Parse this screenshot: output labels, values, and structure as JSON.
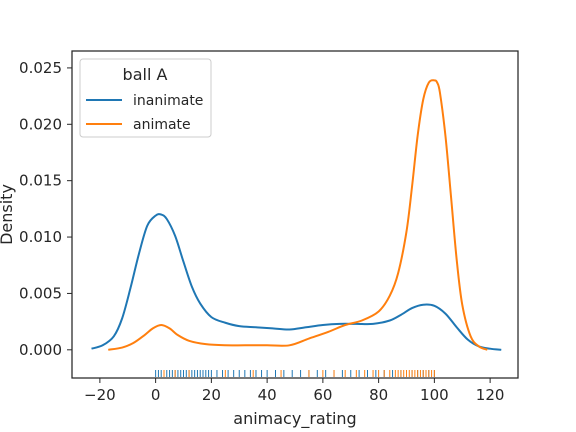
{
  "chart_data": {
    "type": "line",
    "subtype": "kde-with-rug",
    "xlabel": "animacy_rating",
    "ylabel": "Density",
    "xlim": [
      -30,
      130
    ],
    "ylim": [
      -0.0025,
      0.0265
    ],
    "x_ticks": [
      -20,
      0,
      20,
      40,
      60,
      80,
      100,
      120
    ],
    "x_tick_labels": [
      "−20",
      "0",
      "20",
      "40",
      "60",
      "80",
      "100",
      "120"
    ],
    "y_ticks": [
      0.0,
      0.005,
      0.01,
      0.015,
      0.02,
      0.025
    ],
    "y_tick_labels": [
      "0.000",
      "0.005",
      "0.010",
      "0.015",
      "0.020",
      "0.025"
    ],
    "grid": false,
    "legend": {
      "title": "ball A",
      "placement": "top-left",
      "entries": [
        "inanimate",
        "animate"
      ]
    },
    "series": [
      {
        "name": "inanimate",
        "color": "#1f77b4",
        "x": [
          -23,
          -19,
          -15,
          -12,
          -9,
          -6,
          -3,
          0,
          2,
          4,
          7,
          10,
          13,
          16,
          20,
          25,
          30,
          36,
          42,
          48,
          54,
          60,
          66,
          72,
          78,
          84,
          88,
          92,
          96,
          100,
          104,
          108,
          112,
          116,
          120,
          124
        ],
        "y": [
          0.0001,
          0.0004,
          0.0012,
          0.0028,
          0.0055,
          0.0085,
          0.011,
          0.0119,
          0.012,
          0.0116,
          0.0101,
          0.0078,
          0.0056,
          0.0041,
          0.0029,
          0.0024,
          0.0021,
          0.002,
          0.0019,
          0.0018,
          0.002,
          0.0022,
          0.0023,
          0.0023,
          0.0023,
          0.0026,
          0.0031,
          0.0037,
          0.004,
          0.0039,
          0.0032,
          0.002,
          0.0009,
          0.0003,
          0.0001,
          0.0
        ]
      },
      {
        "name": "animate",
        "color": "#ff7f0e",
        "x": [
          -17,
          -12,
          -8,
          -4,
          -1,
          2,
          5,
          8,
          12,
          18,
          25,
          32,
          40,
          48,
          55,
          62,
          68,
          74,
          80,
          84,
          87,
          90,
          92,
          94,
          96,
          98,
          100,
          101,
          102,
          104,
          106,
          108,
          110,
          113,
          116,
          119
        ],
        "y": [
          0.0,
          0.0002,
          0.0006,
          0.0013,
          0.0019,
          0.0022,
          0.0019,
          0.0013,
          0.0008,
          0.0005,
          0.0004,
          0.0004,
          0.0004,
          0.0004,
          0.001,
          0.0016,
          0.0022,
          0.0026,
          0.0034,
          0.0048,
          0.0068,
          0.0105,
          0.0145,
          0.019,
          0.0222,
          0.0237,
          0.0239,
          0.0237,
          0.0228,
          0.0189,
          0.0135,
          0.008,
          0.004,
          0.0012,
          0.0003,
          0.0
        ]
      }
    ],
    "rug": {
      "inanimate_color": "#1f77b4",
      "animate_color": "#ff7f0e",
      "inanimate_x": [
        0,
        1,
        2,
        3,
        4,
        5,
        6,
        7,
        8,
        9,
        10,
        11,
        12,
        13,
        14,
        15,
        16,
        17,
        18,
        19,
        20,
        22,
        24,
        26,
        28,
        30,
        32,
        34,
        36,
        38,
        40,
        43,
        46,
        49,
        52,
        55,
        58,
        61,
        64,
        67,
        70,
        73,
        76,
        79,
        82,
        85,
        88,
        90,
        92,
        94,
        96,
        98,
        100
      ],
      "animate_x": [
        3,
        7,
        12,
        25,
        35,
        45,
        55,
        60,
        64,
        68,
        72,
        75,
        78,
        80,
        82,
        84,
        86,
        87,
        88,
        89,
        90,
        91,
        92,
        93,
        94,
        95,
        96,
        97,
        98,
        99,
        100
      ]
    }
  }
}
